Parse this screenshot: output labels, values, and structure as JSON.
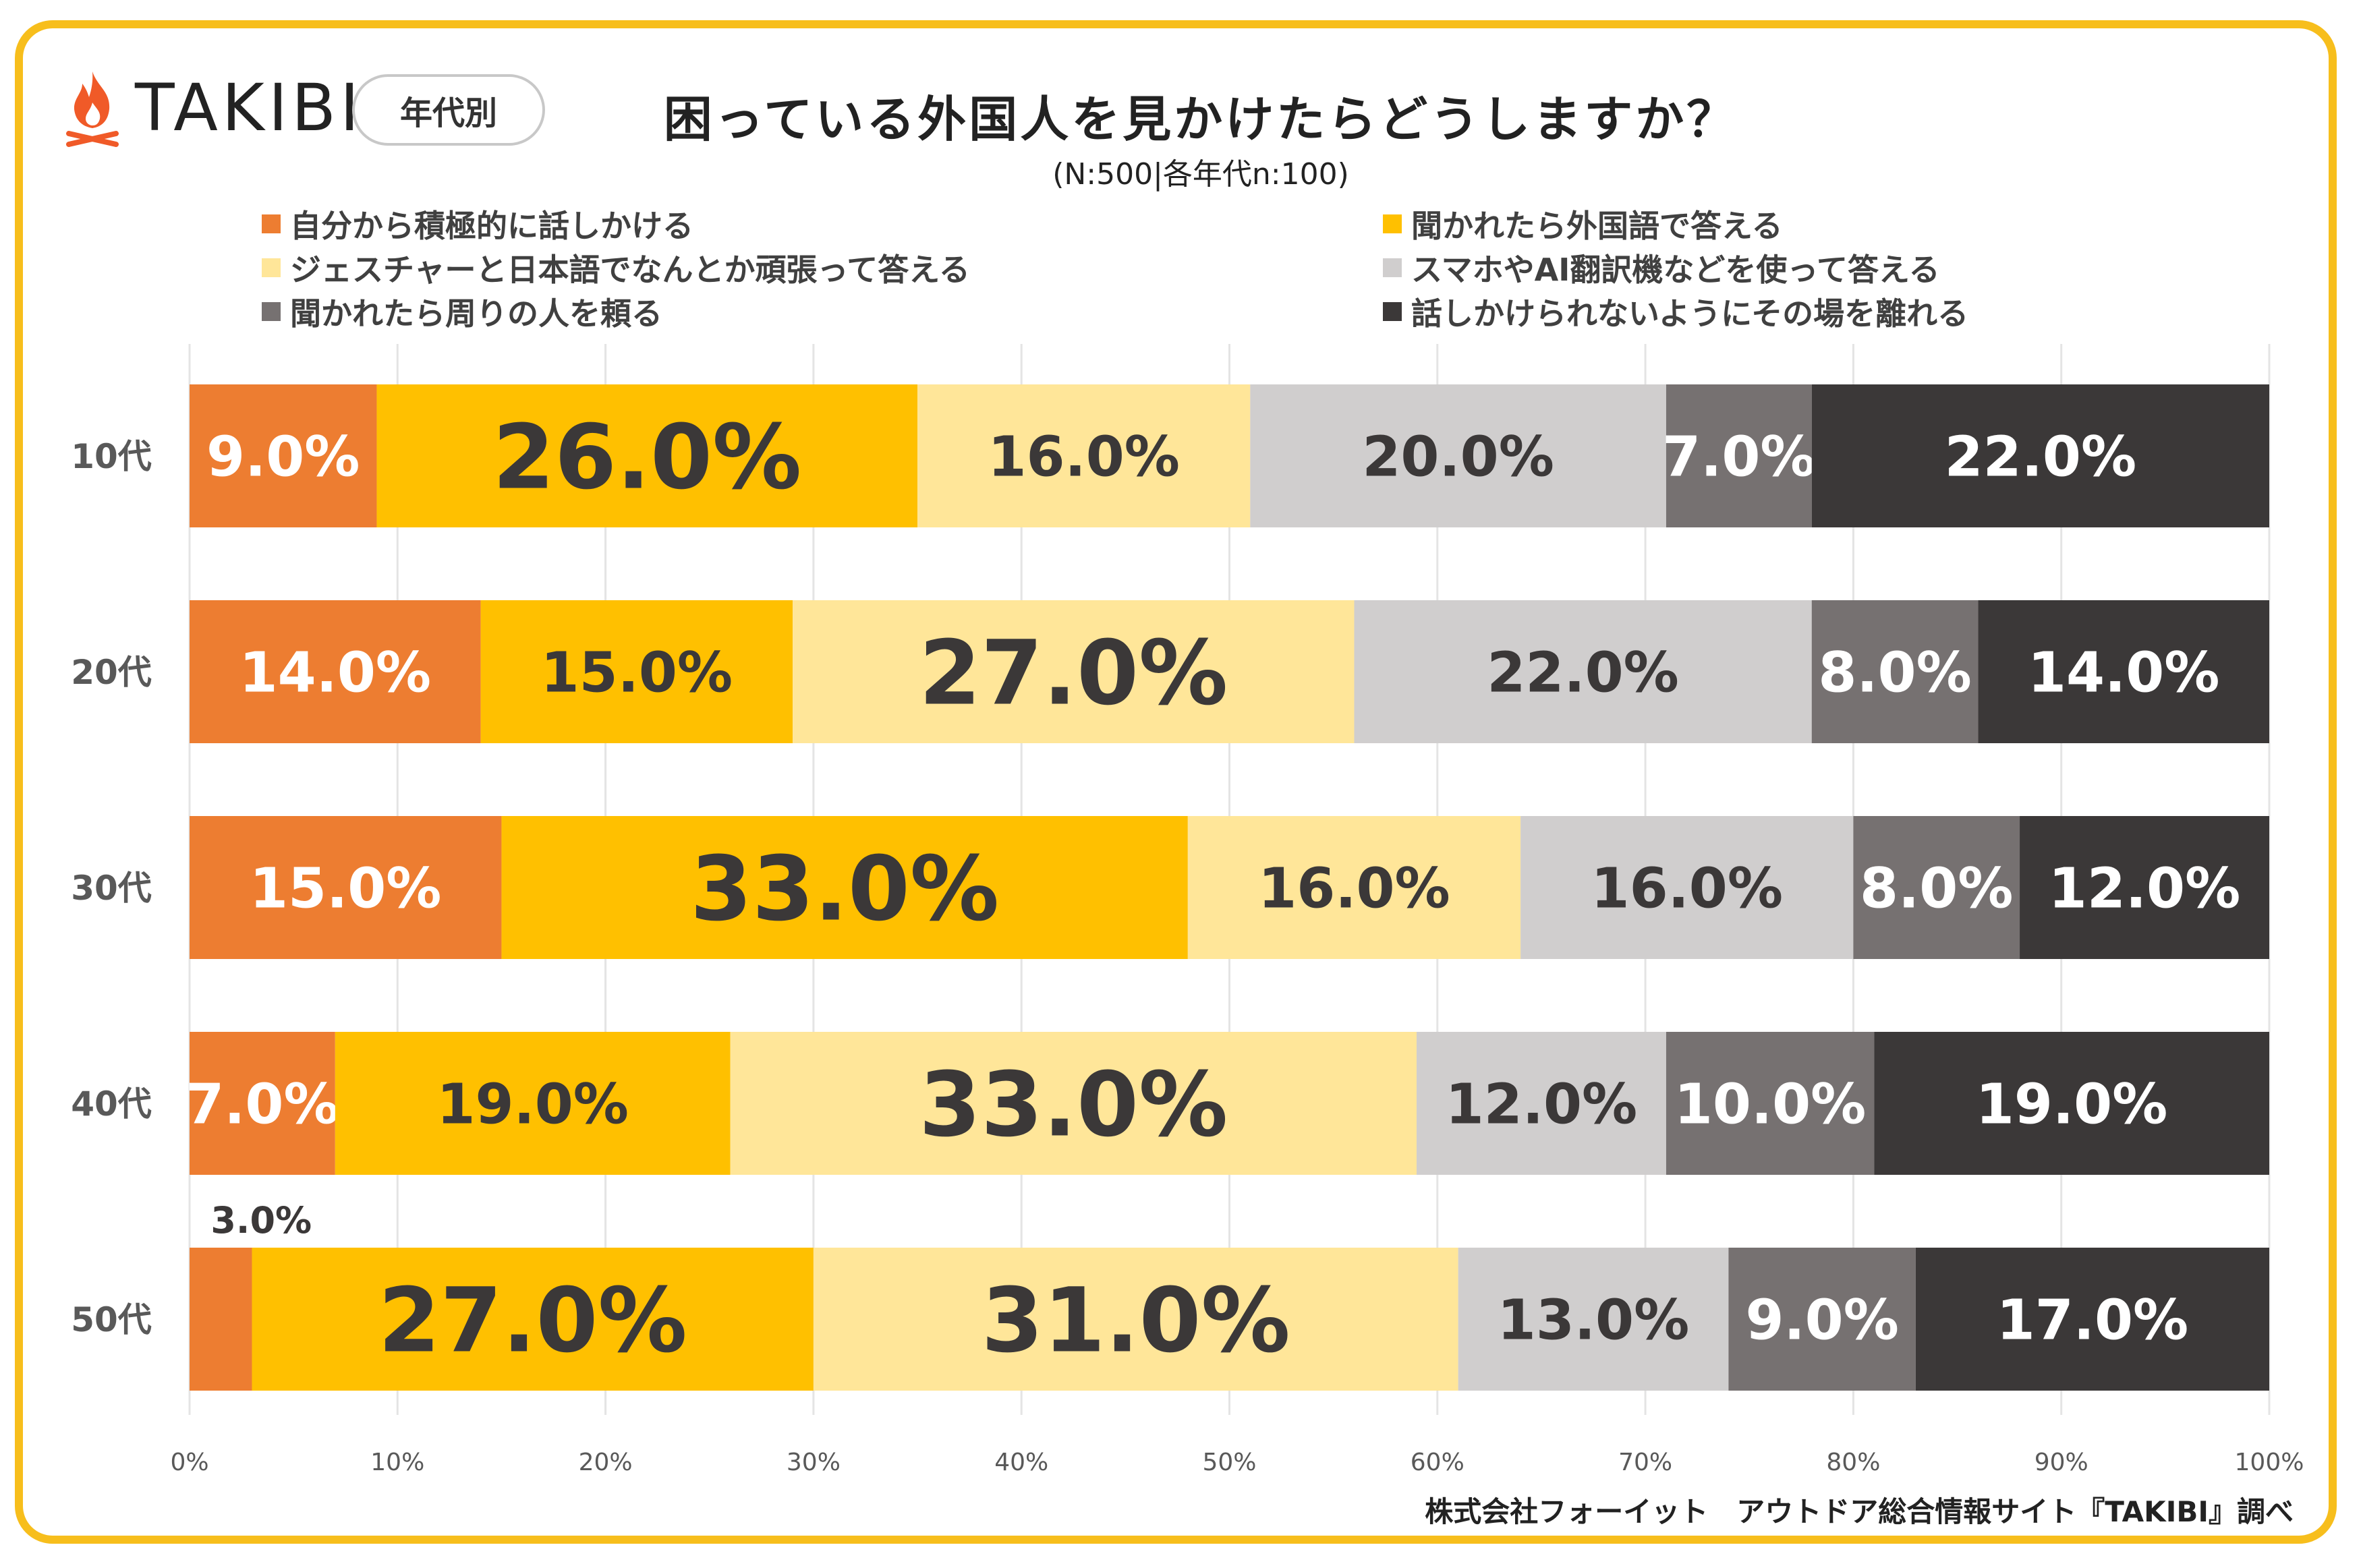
{
  "brand": {
    "name": "TAKIBI",
    "badge": "年代別"
  },
  "header": {
    "title": "困っている外国人を見かけたらどうしますか？",
    "subtitle": "(N:500|各年代n:100)"
  },
  "colors": {
    "frame": "#F7BE1C",
    "flame": "#F05A28",
    "series": [
      "#ED7D31",
      "#FFC000",
      "#FFE699",
      "#D0CECE",
      "#767171",
      "#3B3838"
    ],
    "label_dark": "#3b3838",
    "label_light": "#ffffff"
  },
  "chart_data": {
    "type": "bar",
    "orientation": "horizontal",
    "stacked": true,
    "categories": [
      "10代",
      "20代",
      "30代",
      "40代",
      "50代"
    ],
    "series": [
      {
        "name": "自分から積極的に話しかける",
        "values": [
          9.0,
          14.0,
          15.0,
          7.0,
          3.0
        ]
      },
      {
        "name": "聞かれたら外国語で答える",
        "values": [
          26.0,
          15.0,
          33.0,
          19.0,
          27.0
        ]
      },
      {
        "name": "ジェスチャーと日本語でなんとか頑張って答える",
        "values": [
          16.0,
          27.0,
          16.0,
          33.0,
          31.0
        ]
      },
      {
        "name": "スマホやAI翻訳機などを使って答える",
        "values": [
          20.0,
          22.0,
          16.0,
          12.0,
          13.0
        ]
      },
      {
        "name": "聞かれたら周りの人を頼る",
        "values": [
          7.0,
          8.0,
          8.0,
          10.0,
          9.0
        ]
      },
      {
        "name": "話しかけられないようにその場を離れる",
        "values": [
          22.0,
          14.0,
          12.0,
          19.0,
          17.0
        ]
      }
    ],
    "data_labels": [
      [
        "9.0%",
        "26.0%",
        "16.0%",
        "20.0%",
        "7.0%",
        "22.0%"
      ],
      [
        "14.0%",
        "15.0%",
        "27.0%",
        "22.0%",
        "8.0%",
        "14.0%"
      ],
      [
        "15.0%",
        "33.0%",
        "16.0%",
        "16.0%",
        "8.0%",
        "12.0%"
      ],
      [
        "7.0%",
        "19.0%",
        "33.0%",
        "12.0%",
        "10.0%",
        "19.0%"
      ],
      [
        "3.0%",
        "27.0%",
        "31.0%",
        "13.0%",
        "9.0%",
        "17.0%"
      ]
    ],
    "x_ticks": [
      "0%",
      "10%",
      "20%",
      "30%",
      "40%",
      "50%",
      "60%",
      "70%",
      "80%",
      "90%",
      "100%"
    ],
    "xlim": [
      0,
      100
    ],
    "grid": true,
    "legend_position": "top"
  },
  "footer": {
    "source": "株式会社フォーイット　アウトドア総合情報サイト『TAKIBI』調べ"
  }
}
